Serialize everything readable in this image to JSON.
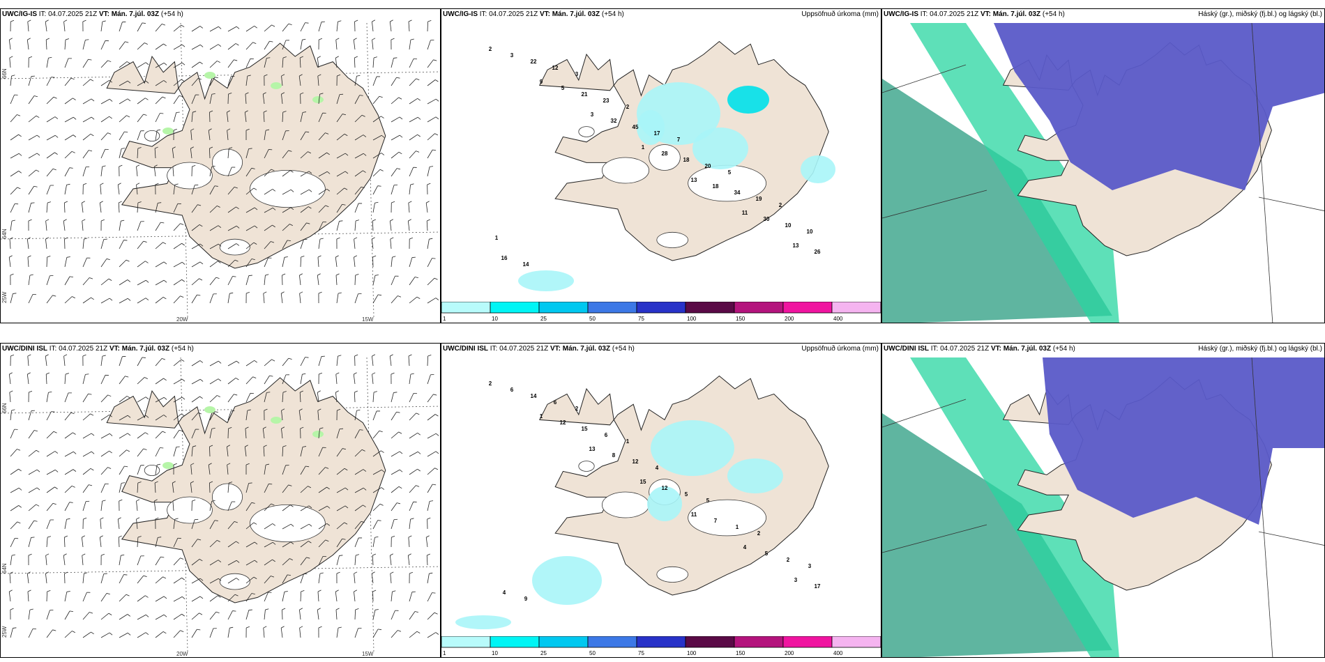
{
  "rows": [
    {
      "wind_title": {
        "model": "UWC/IG-IS",
        "it_label": "IT:",
        "it_value": "04.07.2025 21Z",
        "vt_label": "VT:",
        "vt_value": "Mán. 7.júl. 03Z",
        "lead": "(+54 h)"
      },
      "precip_title": {
        "model": "UWC/IG-IS",
        "it_label": "IT:",
        "it_value": "04.07.2025 21Z",
        "vt_label": "VT:",
        "vt_value": "Mán. 7.júl. 03Z",
        "lead": "(+54 h)",
        "right": "Uppsöfnuð úrkoma (mm)"
      },
      "cloud_title": {
        "model": "UWC/IG-IS",
        "it_label": "IT:",
        "it_value": "04.07.2025 21Z",
        "vt_label": "VT:",
        "vt_value": "Mán. 7.júl. 03Z",
        "lead": "(+54 h)",
        "right": "Háský (gr.), miðský (fj.bl.) og lágský (bl.)"
      },
      "precip_values": [
        "2",
        "9",
        "3",
        "1",
        "13",
        "11",
        "13",
        "3",
        "5",
        "32",
        "28",
        "18",
        "30",
        "26",
        "22",
        "21",
        "45",
        "18",
        "34",
        "10",
        "16",
        "12",
        "23",
        "17",
        "20",
        "19",
        "10",
        "14",
        "3",
        "2",
        "7",
        "5",
        "2",
        "1"
      ]
    },
    {
      "wind_title": {
        "model": "UWC/DINI ISL",
        "it_label": "IT:",
        "it_value": "04.07.2025 21Z",
        "vt_label": "VT:",
        "vt_value": "Mán. 7.júl. 03Z",
        "lead": "(+54 h)"
      },
      "precip_title": {
        "model": "UWC/DINI ISL",
        "it_label": "IT:",
        "it_value": "04.07.2025 21Z",
        "vt_label": "VT:",
        "vt_value": "Mán. 7.júl. 03Z",
        "lead": "(+54 h)",
        "right": "Uppsöfnuð úrkoma (mm)"
      },
      "cloud_title": {
        "model": "UWC/DINI ISL",
        "it_label": "IT:",
        "it_value": "04.07.2025 21Z",
        "vt_label": "VT:",
        "vt_value": "Mán. 7.júl. 03Z",
        "lead": "(+54 h)",
        "right": "Háský (gr.), miðský (fj.bl.) og lágský (bl.)"
      },
      "precip_values": [
        "2",
        "1",
        "13",
        "15",
        "11",
        "4",
        "3",
        "6",
        "12",
        "8",
        "12",
        "7",
        "5",
        "17",
        "14",
        "15",
        "12",
        "5",
        "1",
        "2",
        "4",
        "6",
        "6",
        "4",
        "5",
        "2",
        "3",
        "9",
        "2",
        "1"
      ]
    }
  ],
  "axis_labels": {
    "lon_w25": "25W",
    "lon_w20": "20W",
    "lon_w15": "15W",
    "lat_66": "66N",
    "lat_64": "64N"
  },
  "colorbar": {
    "labels": [
      "1",
      "10",
      "25",
      "50",
      "75",
      "100",
      "150",
      "200",
      "400"
    ],
    "colors": [
      "#b8fbfb",
      "#00f5f5",
      "#00c8f0",
      "#3c78e6",
      "#2832c8",
      "#5a0a46",
      "#b4147d",
      "#f014a0",
      "#f5b4f0"
    ]
  },
  "colors": {
    "land": "#efe3d6",
    "precip_light": "#a8f5f8",
    "precip_mid": "#00e0ea",
    "cloud_high": "#5fb5a0",
    "cloud_mid": "#5a5ac8",
    "cloud_low": "#28d6a0"
  }
}
